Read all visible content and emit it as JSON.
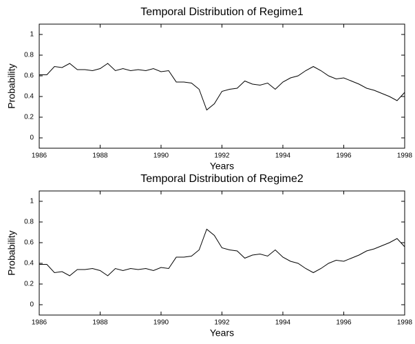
{
  "chart_data": [
    {
      "type": "line",
      "title": "Temporal Distribution of Regime1",
      "xlabel": "Years",
      "ylabel": "Probability",
      "x": [
        1986,
        1986.25,
        1986.5,
        1986.75,
        1987,
        1987.25,
        1987.5,
        1987.75,
        1988,
        1988.25,
        1988.5,
        1988.75,
        1989,
        1989.25,
        1989.5,
        1989.75,
        1990,
        1990.25,
        1990.5,
        1990.75,
        1991,
        1991.25,
        1991.5,
        1991.75,
        1992,
        1992.25,
        1992.5,
        1992.75,
        1993,
        1993.25,
        1993.5,
        1993.75,
        1994,
        1994.25,
        1994.5,
        1994.75,
        1995,
        1995.25,
        1995.5,
        1995.75,
        1996,
        1996.25,
        1996.5,
        1996.75,
        1997,
        1997.25,
        1997.5,
        1997.75,
        1998
      ],
      "series": [
        {
          "color": "#000000",
          "values": [
            0.61,
            0.61,
            0.69,
            0.68,
            0.72,
            0.66,
            0.66,
            0.65,
            0.67,
            0.72,
            0.65,
            0.67,
            0.65,
            0.66,
            0.65,
            0.67,
            0.64,
            0.65,
            0.54,
            0.54,
            0.53,
            0.47,
            0.27,
            0.33,
            0.45,
            0.47,
            0.48,
            0.55,
            0.52,
            0.51,
            0.53,
            0.47,
            0.54,
            0.58,
            0.6,
            0.65,
            0.69,
            0.65,
            0.6,
            0.57,
            0.58,
            0.55,
            0.52,
            0.48,
            0.46,
            0.43,
            0.4,
            0.36,
            0.44
          ]
        }
      ],
      "xlim": [
        1986,
        1998
      ],
      "xticks": [
        1986,
        1988,
        1990,
        1992,
        1994,
        1996,
        1998
      ],
      "ylim": [
        -0.1,
        1.1
      ],
      "yticks": [
        0,
        0.2,
        0.4,
        0.6,
        0.8,
        1
      ]
    },
    {
      "type": "line",
      "title": "Temporal Distribution of Regime2",
      "xlabel": "Years",
      "ylabel": "Probability",
      "x": [
        1986,
        1986.25,
        1986.5,
        1986.75,
        1987,
        1987.25,
        1987.5,
        1987.75,
        1988,
        1988.25,
        1988.5,
        1988.75,
        1989,
        1989.25,
        1989.5,
        1989.75,
        1990,
        1990.25,
        1990.5,
        1990.75,
        1991,
        1991.25,
        1991.5,
        1991.75,
        1992,
        1992.25,
        1992.5,
        1992.75,
        1993,
        1993.25,
        1993.5,
        1993.75,
        1994,
        1994.25,
        1994.5,
        1994.75,
        1995,
        1995.25,
        1995.5,
        1995.75,
        1996,
        1996.25,
        1996.5,
        1996.75,
        1997,
        1997.25,
        1997.5,
        1997.75,
        1998
      ],
      "series": [
        {
          "color": "#000000",
          "values": [
            0.39,
            0.39,
            0.31,
            0.32,
            0.28,
            0.34,
            0.34,
            0.35,
            0.33,
            0.28,
            0.35,
            0.33,
            0.35,
            0.34,
            0.35,
            0.33,
            0.36,
            0.35,
            0.46,
            0.46,
            0.47,
            0.53,
            0.73,
            0.67,
            0.55,
            0.53,
            0.52,
            0.45,
            0.48,
            0.49,
            0.47,
            0.53,
            0.46,
            0.42,
            0.4,
            0.35,
            0.31,
            0.35,
            0.4,
            0.43,
            0.42,
            0.45,
            0.48,
            0.52,
            0.54,
            0.57,
            0.6,
            0.64,
            0.56
          ]
        }
      ],
      "xlim": [
        1986,
        1998
      ],
      "xticks": [
        1986,
        1988,
        1990,
        1992,
        1994,
        1996,
        1998
      ],
      "ylim": [
        -0.1,
        1.1
      ],
      "yticks": [
        0,
        0.2,
        0.4,
        0.6,
        0.8,
        1
      ]
    }
  ]
}
